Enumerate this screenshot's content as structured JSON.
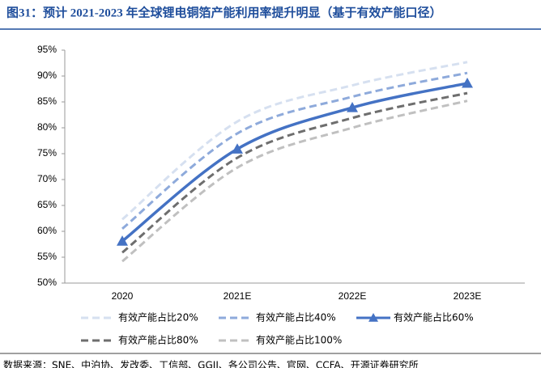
{
  "chart_data": {
    "type": "line",
    "title": "图31：预计 2021-2023 年全球锂电铜箔产能利用率提升明显（基于有效产能口径）",
    "source": "数据来源：SNE、中泊协、发改委、工信部、GGII、各公司公告、官网、CCFA、开源证券研究所",
    "categories": [
      "2020",
      "2021E",
      "2022E",
      "2023E"
    ],
    "series": [
      {
        "name": "有效产能占比20%",
        "color": "#d6e0f0",
        "dashed": true,
        "values": [
          62.3,
          81.2,
          88.2,
          92.7
        ]
      },
      {
        "name": "有效产能占比40%",
        "color": "#8eaadb",
        "dashed": true,
        "values": [
          60.5,
          78.9,
          86.0,
          90.6
        ]
      },
      {
        "name": "有效产能占比60%",
        "color": "#4472c4",
        "dashed": false,
        "marker": "triangle",
        "values": [
          58.1,
          75.9,
          83.9,
          88.6
        ]
      },
      {
        "name": "有效产能占比80%",
        "color": "#6e6e6e",
        "dashed": true,
        "values": [
          55.9,
          74.2,
          81.9,
          86.7
        ]
      },
      {
        "name": "有效产能占比100%",
        "color": "#c0c0c0",
        "dashed": true,
        "values": [
          54.2,
          72.3,
          80.0,
          85.2
        ]
      }
    ],
    "ylim": [
      50,
      95
    ],
    "yticks": [
      {
        "value": 50,
        "label": "50%"
      },
      {
        "value": 55,
        "label": "55%"
      },
      {
        "value": 60,
        "label": "60%"
      },
      {
        "value": 65,
        "label": "65%"
      },
      {
        "value": 70,
        "label": "70%"
      },
      {
        "value": 75,
        "label": "75%"
      },
      {
        "value": 80,
        "label": "80%"
      },
      {
        "value": 85,
        "label": "85%"
      },
      {
        "value": 90,
        "label": "90%"
      },
      {
        "value": 95,
        "label": "95%"
      }
    ],
    "grid": false
  }
}
